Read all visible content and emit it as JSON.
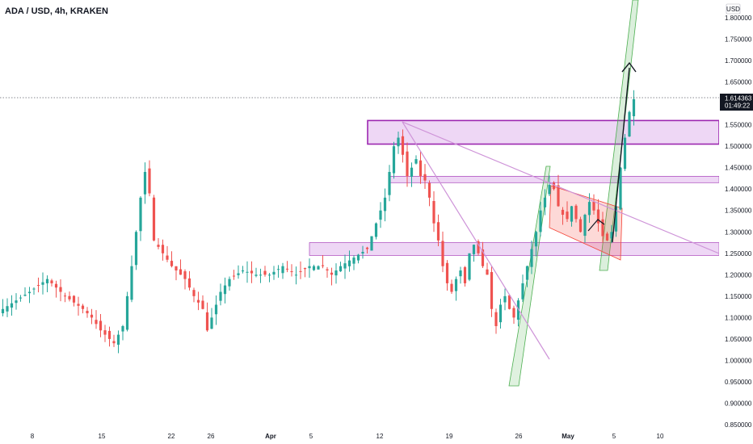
{
  "header": {
    "title": "ADA / USD, 4h, KRAKEN"
  },
  "price_axis": {
    "currency": "USD"
  },
  "last_price": {
    "value": "1.614363",
    "countdown": "01:49:22"
  },
  "colors": {
    "up": "#26a69a",
    "down": "#ef5350",
    "zone_fill": "#d9a6e8",
    "zone_stroke": "#9c27b0",
    "channel": "#4caf50",
    "flag": "#f44336",
    "trendline": "#ce93d8"
  },
  "chart_data": {
    "type": "candlestick",
    "title": "ADA / USD, 4h, KRAKEN",
    "ylim": [
      0.85,
      1.83
    ],
    "y_ticks": [
      "0.850000",
      "0.900000",
      "0.950000",
      "1.000000",
      "1.050000",
      "1.100000",
      "1.150000",
      "1.200000",
      "1.250000",
      "1.300000",
      "1.350000",
      "1.400000",
      "1.450000",
      "1.500000",
      "1.550000",
      "1.600000",
      "1.650000",
      "1.700000",
      "1.750000",
      "1.800000"
    ],
    "x_ticks": [
      "8",
      "15",
      "22",
      "26",
      "Apr",
      "5",
      "12",
      "19",
      "26",
      "May",
      "5",
      "10"
    ],
    "close_path": [
      [
        0,
        1.12
      ],
      [
        6,
        1.16
      ],
      [
        10,
        1.19
      ],
      [
        14,
        1.15
      ],
      [
        18,
        1.12
      ],
      [
        20,
        1.1
      ],
      [
        22,
        1.07
      ],
      [
        25,
        1.04
      ],
      [
        27,
        1.08
      ],
      [
        29,
        1.22
      ],
      [
        31,
        1.38
      ],
      [
        32,
        1.44
      ],
      [
        33,
        1.39
      ],
      [
        34,
        1.28
      ],
      [
        36,
        1.25
      ],
      [
        38,
        1.22
      ],
      [
        41,
        1.19
      ],
      [
        43,
        1.15
      ],
      [
        45,
        1.12
      ],
      [
        46,
        1.07
      ],
      [
        47,
        1.1
      ],
      [
        49,
        1.16
      ],
      [
        51,
        1.19
      ],
      [
        54,
        1.21
      ],
      [
        57,
        1.2
      ],
      [
        60,
        1.2
      ],
      [
        63,
        1.22
      ],
      [
        66,
        1.2
      ],
      [
        69,
        1.22
      ],
      [
        72,
        1.22
      ],
      [
        74,
        1.2
      ],
      [
        76,
        1.22
      ],
      [
        79,
        1.24
      ],
      [
        82,
        1.26
      ],
      [
        84,
        1.32
      ],
      [
        86,
        1.38
      ],
      [
        87,
        1.44
      ],
      [
        88,
        1.5
      ],
      [
        89,
        1.52
      ],
      [
        90,
        1.48
      ],
      [
        91,
        1.43
      ],
      [
        92,
        1.45
      ],
      [
        93,
        1.47
      ],
      [
        94,
        1.43
      ],
      [
        95,
        1.42
      ],
      [
        96,
        1.38
      ],
      [
        97,
        1.32
      ],
      [
        98,
        1.28
      ],
      [
        99,
        1.22
      ],
      [
        100,
        1.18
      ],
      [
        101,
        1.16
      ],
      [
        102,
        1.19
      ],
      [
        103,
        1.21
      ],
      [
        104,
        1.18
      ],
      [
        105,
        1.25
      ],
      [
        106,
        1.27
      ],
      [
        107,
        1.25
      ],
      [
        108,
        1.22
      ],
      [
        109,
        1.2
      ],
      [
        110,
        1.12
      ],
      [
        111,
        1.08
      ],
      [
        112,
        1.13
      ],
      [
        113,
        1.15
      ],
      [
        114,
        1.12
      ],
      [
        115,
        1.1
      ],
      [
        116,
        1.14
      ],
      [
        117,
        1.18
      ],
      [
        118,
        1.22
      ],
      [
        119,
        1.26
      ],
      [
        120,
        1.3
      ],
      [
        121,
        1.35
      ],
      [
        122,
        1.38
      ],
      [
        123,
        1.41
      ],
      [
        124,
        1.4
      ],
      [
        125,
        1.36
      ],
      [
        126,
        1.34
      ],
      [
        127,
        1.33
      ],
      [
        128,
        1.36
      ],
      [
        129,
        1.33
      ],
      [
        130,
        1.3
      ],
      [
        131,
        1.34
      ],
      [
        132,
        1.37
      ],
      [
        133,
        1.35
      ],
      [
        134,
        1.32
      ],
      [
        135,
        1.29
      ],
      [
        136,
        1.28
      ],
      [
        137,
        1.3
      ],
      [
        138,
        1.36
      ],
      [
        139,
        1.45
      ],
      [
        140,
        1.52
      ],
      [
        141,
        1.58
      ],
      [
        142,
        1.61
      ]
    ],
    "series": [
      {
        "name": "support-resistance zones",
        "bands": [
          [
            1.505,
            1.56
          ],
          [
            1.415,
            1.43
          ],
          [
            1.245,
            1.275
          ]
        ]
      }
    ],
    "grid": false
  }
}
